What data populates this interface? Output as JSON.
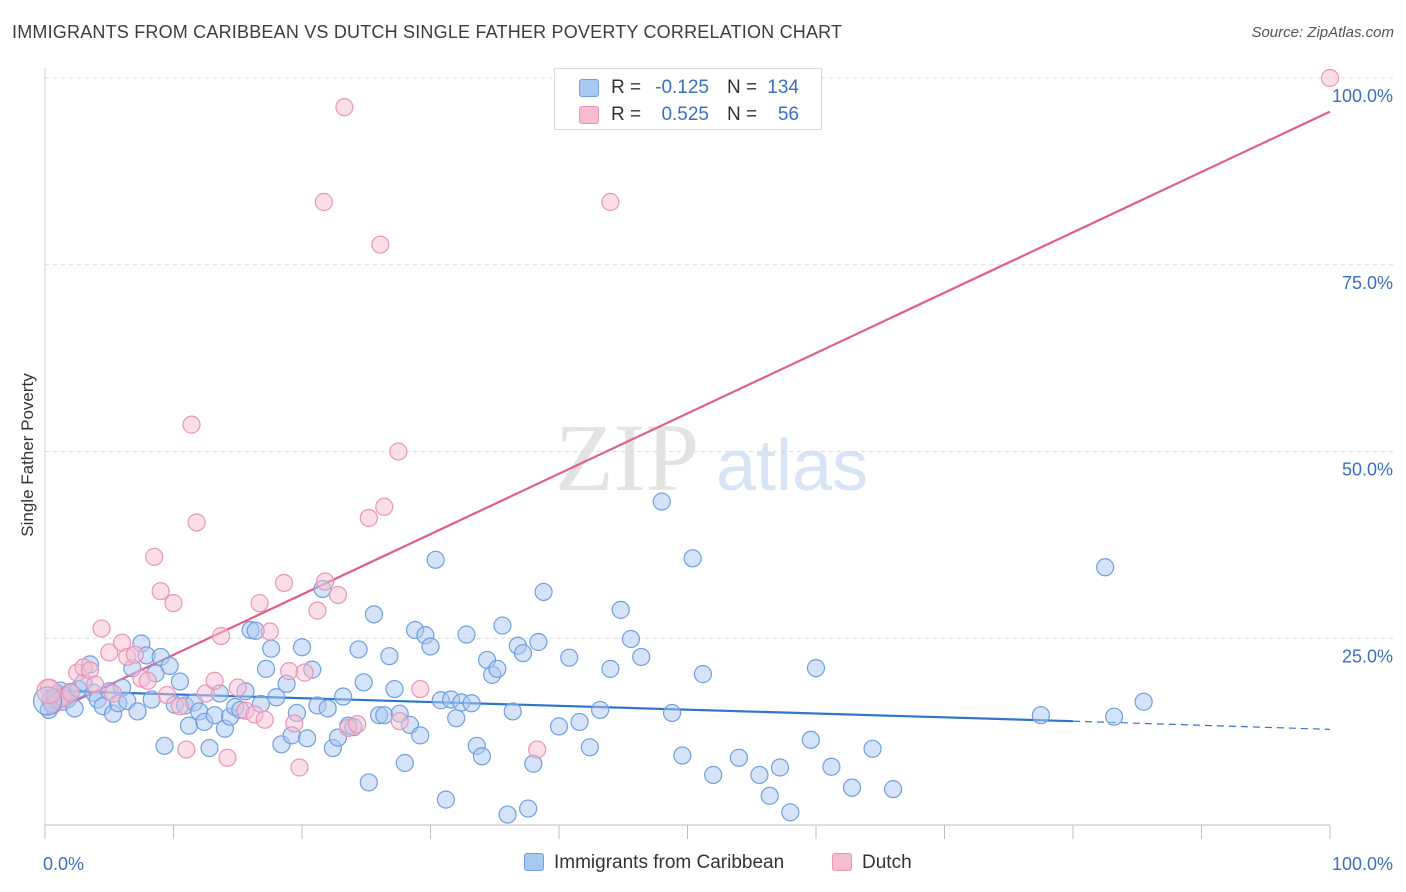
{
  "header": {
    "title": "IMMIGRANTS FROM CARIBBEAN VS DUTCH SINGLE FATHER POVERTY CORRELATION CHART",
    "source": "Source: ZipAtlas.com"
  },
  "watermark": {
    "zip": "ZIP",
    "atlas": "atlas"
  },
  "stats": {
    "rows": [
      {
        "r_label": "R =",
        "r_value": "-0.125",
        "n_label": "N =",
        "n_value": "134"
      },
      {
        "r_label": "R =",
        "r_value": "0.525",
        "n_label": "N =",
        "n_value": "56"
      }
    ]
  },
  "legend": {
    "items": [
      {
        "label": "Immigrants from Caribbean"
      },
      {
        "label": "Dutch"
      }
    ]
  },
  "colors": {
    "blue_fill": "#a9c8f0",
    "blue_stroke": "#6f9fe0",
    "blue_line": "#2f74d0",
    "pink_fill": "#f6bdd1",
    "pink_stroke": "#ec94b4",
    "pink_line": "#e05d8c",
    "tick_label": "#3a6fc4",
    "grid": "#dcdcdc"
  },
  "chart_data": {
    "type": "scatter",
    "title": "IMMIGRANTS FROM CARIBBEAN VS DUTCH SINGLE FATHER POVERTY CORRELATION CHART",
    "xlabel": "",
    "ylabel": "Single Father Poverty",
    "xlim": [
      0,
      100
    ],
    "ylim": [
      0,
      100
    ],
    "x_tick_labels": [
      "0.0%",
      "100.0%"
    ],
    "y_tick_labels": [
      "25.0%",
      "50.0%",
      "75.0%",
      "100.0%"
    ],
    "y_ticks": [
      25,
      50,
      75,
      100
    ],
    "grid": true,
    "legend_position": "bottom-center",
    "series": [
      {
        "name": "Immigrants from Caribbean",
        "color": "#a9c8f0",
        "points": [
          [
            0.3,
            15.4
          ],
          [
            0.4,
            16.7
          ],
          [
            0.6,
            16.2
          ],
          [
            0.8,
            17.1
          ],
          [
            1.0,
            17.6
          ],
          [
            1.2,
            18.0
          ],
          [
            1.4,
            16.5
          ],
          [
            1.6,
            17.3
          ],
          [
            1.8,
            16.9
          ],
          [
            2.0,
            17.8
          ],
          [
            2.3,
            15.6
          ],
          [
            2.6,
            18.2
          ],
          [
            3.0,
            19.1
          ],
          [
            3.5,
            21.5
          ],
          [
            3.8,
            17.7
          ],
          [
            4.1,
            16.8
          ],
          [
            4.5,
            15.9
          ],
          [
            5.0,
            17.9
          ],
          [
            5.3,
            14.9
          ],
          [
            5.7,
            16.3
          ],
          [
            6.0,
            18.4
          ],
          [
            6.4,
            16.6
          ],
          [
            6.8,
            21.0
          ],
          [
            7.2,
            15.2
          ],
          [
            7.5,
            24.3
          ],
          [
            7.9,
            22.7
          ],
          [
            8.3,
            16.8
          ],
          [
            8.6,
            20.3
          ],
          [
            9.0,
            22.5
          ],
          [
            9.3,
            10.6
          ],
          [
            9.7,
            21.3
          ],
          [
            10.1,
            16.1
          ],
          [
            10.5,
            19.2
          ],
          [
            10.9,
            16.0
          ],
          [
            11.2,
            13.3
          ],
          [
            11.6,
            16.4
          ],
          [
            12.0,
            15.2
          ],
          [
            12.4,
            13.8
          ],
          [
            12.8,
            10.3
          ],
          [
            13.2,
            14.7
          ],
          [
            13.6,
            17.6
          ],
          [
            14.0,
            12.9
          ],
          [
            14.4,
            14.5
          ],
          [
            14.8,
            15.8
          ],
          [
            15.2,
            15.4
          ],
          [
            15.6,
            17.9
          ],
          [
            16.0,
            26.1
          ],
          [
            16.4,
            26.0
          ],
          [
            16.8,
            16.2
          ],
          [
            17.2,
            20.9
          ],
          [
            17.6,
            23.6
          ],
          [
            18.0,
            17.1
          ],
          [
            18.4,
            10.8
          ],
          [
            18.8,
            18.9
          ],
          [
            19.2,
            12.0
          ],
          [
            19.6,
            15.0
          ],
          [
            20.0,
            23.8
          ],
          [
            20.4,
            11.6
          ],
          [
            20.8,
            20.8
          ],
          [
            21.2,
            16.0
          ],
          [
            21.6,
            31.6
          ],
          [
            22.0,
            15.6
          ],
          [
            22.4,
            10.3
          ],
          [
            22.8,
            11.7
          ],
          [
            23.2,
            17.2
          ],
          [
            23.6,
            13.3
          ],
          [
            24.0,
            13.1
          ],
          [
            24.4,
            23.5
          ],
          [
            24.8,
            19.1
          ],
          [
            25.2,
            5.7
          ],
          [
            25.6,
            28.2
          ],
          [
            26.0,
            14.7
          ],
          [
            26.4,
            14.7
          ],
          [
            26.8,
            22.6
          ],
          [
            27.2,
            18.2
          ],
          [
            27.6,
            14.9
          ],
          [
            28.0,
            8.3
          ],
          [
            28.4,
            13.4
          ],
          [
            28.8,
            26.1
          ],
          [
            29.2,
            12.0
          ],
          [
            29.6,
            25.4
          ],
          [
            30.0,
            23.9
          ],
          [
            30.4,
            35.5
          ],
          [
            30.8,
            16.7
          ],
          [
            31.2,
            3.4
          ],
          [
            31.6,
            16.8
          ],
          [
            32.0,
            14.3
          ],
          [
            32.4,
            16.4
          ],
          [
            32.8,
            25.5
          ],
          [
            33.2,
            16.3
          ],
          [
            33.6,
            10.6
          ],
          [
            34.0,
            9.2
          ],
          [
            34.4,
            22.1
          ],
          [
            34.8,
            20.1
          ],
          [
            35.2,
            20.9
          ],
          [
            35.6,
            26.7
          ],
          [
            36.0,
            1.4
          ],
          [
            36.4,
            15.2
          ],
          [
            36.8,
            24.0
          ],
          [
            37.2,
            23.0
          ],
          [
            37.6,
            2.2
          ],
          [
            38.0,
            8.2
          ],
          [
            38.4,
            24.5
          ],
          [
            38.8,
            31.2
          ],
          [
            40.0,
            13.2
          ],
          [
            40.8,
            22.4
          ],
          [
            41.6,
            13.8
          ],
          [
            42.4,
            10.4
          ],
          [
            43.2,
            15.4
          ],
          [
            44.0,
            20.9
          ],
          [
            44.8,
            28.8
          ],
          [
            45.6,
            24.9
          ],
          [
            46.4,
            22.5
          ],
          [
            48.0,
            43.3
          ],
          [
            48.8,
            15.0
          ],
          [
            49.6,
            9.3
          ],
          [
            50.4,
            35.7
          ],
          [
            51.2,
            20.2
          ],
          [
            52.0,
            6.7
          ],
          [
            54.0,
            9.0
          ],
          [
            55.6,
            6.7
          ],
          [
            56.4,
            3.9
          ],
          [
            57.2,
            7.7
          ],
          [
            58.0,
            1.7
          ],
          [
            59.6,
            11.4
          ],
          [
            61.2,
            7.8
          ],
          [
            62.8,
            5.0
          ],
          [
            64.4,
            10.2
          ],
          [
            66.0,
            4.8
          ],
          [
            77.5,
            14.7
          ],
          [
            82.5,
            34.5
          ],
          [
            83.2,
            14.5
          ],
          [
            85.5,
            16.5
          ],
          [
            60.0,
            21.0
          ]
        ],
        "trend": {
          "x": [
            0,
            80
          ],
          "y": [
            18.0,
            13.9
          ],
          "dashed_x": [
            80,
            100
          ],
          "dashed_y": [
            13.9,
            12.8
          ]
        }
      },
      {
        "name": "Dutch",
        "color": "#f6bdd1",
        "points": [
          [
            0.3,
            18.3
          ],
          [
            0.6,
            16.0
          ],
          [
            1.0,
            16.7
          ],
          [
            1.4,
            17.0
          ],
          [
            2.0,
            17.7
          ],
          [
            2.5,
            20.4
          ],
          [
            3.0,
            21.1
          ],
          [
            3.5,
            20.7
          ],
          [
            3.9,
            18.8
          ],
          [
            4.4,
            26.3
          ],
          [
            5.0,
            23.1
          ],
          [
            5.3,
            17.6
          ],
          [
            6.0,
            24.4
          ],
          [
            6.4,
            22.5
          ],
          [
            7.0,
            22.8
          ],
          [
            7.5,
            19.6
          ],
          [
            8.0,
            19.3
          ],
          [
            8.5,
            35.9
          ],
          [
            9.0,
            31.3
          ],
          [
            9.5,
            17.4
          ],
          [
            10.0,
            29.7
          ],
          [
            10.5,
            15.9
          ],
          [
            11.0,
            10.1
          ],
          [
            11.4,
            53.6
          ],
          [
            11.8,
            40.5
          ],
          [
            12.5,
            17.6
          ],
          [
            13.2,
            19.3
          ],
          [
            13.7,
            25.3
          ],
          [
            14.2,
            9.0
          ],
          [
            15.0,
            18.4
          ],
          [
            15.6,
            15.3
          ],
          [
            16.3,
            14.8
          ],
          [
            16.7,
            29.7
          ],
          [
            17.1,
            14.1
          ],
          [
            17.5,
            25.9
          ],
          [
            18.6,
            32.4
          ],
          [
            19.0,
            20.6
          ],
          [
            19.4,
            13.6
          ],
          [
            19.8,
            7.7
          ],
          [
            20.2,
            20.4
          ],
          [
            21.2,
            28.7
          ],
          [
            21.8,
            32.6
          ],
          [
            22.8,
            30.8
          ],
          [
            23.6,
            13.0
          ],
          [
            24.3,
            13.5
          ],
          [
            25.2,
            41.1
          ],
          [
            26.4,
            42.6
          ],
          [
            27.6,
            13.9
          ],
          [
            29.2,
            18.2
          ],
          [
            23.3,
            96.1
          ],
          [
            21.7,
            83.4
          ],
          [
            26.1,
            77.7
          ],
          [
            44.0,
            83.4
          ],
          [
            27.5,
            50.0
          ],
          [
            38.3,
            10.1
          ],
          [
            100.0,
            100.0
          ]
        ],
        "trend": {
          "x": [
            0,
            100
          ],
          "y": [
            14.7,
            95.5
          ]
        }
      }
    ]
  }
}
